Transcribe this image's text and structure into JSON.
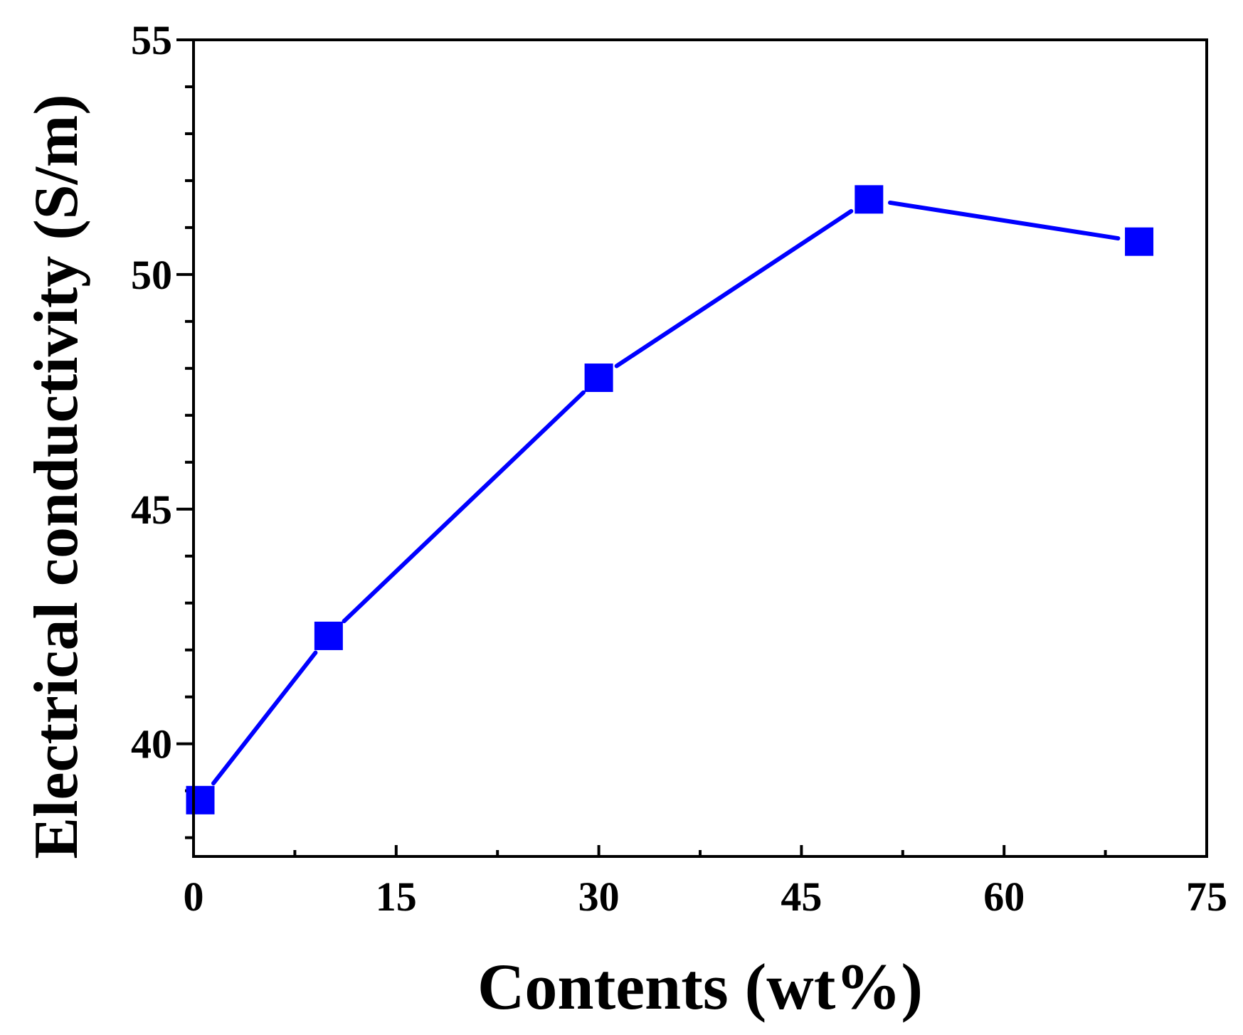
{
  "chart_data": {
    "type": "line",
    "title": "",
    "xlabel": "Contents (wt%)",
    "ylabel": "Electrical conductivity (S/m)",
    "xlim": [
      0,
      75
    ],
    "ylim": [
      37.6,
      55
    ],
    "x_ticks": [
      0,
      15,
      30,
      45,
      60,
      75
    ],
    "x_tick_labels": [
      "0",
      "15",
      "30",
      "45",
      "60",
      "75"
    ],
    "y_ticks": [
      40,
      45,
      50,
      55
    ],
    "y_tick_labels": [
      "40",
      "45",
      "50",
      "55"
    ],
    "grid": false,
    "series": [
      {
        "color": "#0000ff",
        "marker": "square",
        "x": [
          0.5,
          10,
          30,
          50,
          70
        ],
        "y": [
          38.8,
          42.3,
          47.8,
          51.6,
          50.7
        ]
      }
    ]
  }
}
